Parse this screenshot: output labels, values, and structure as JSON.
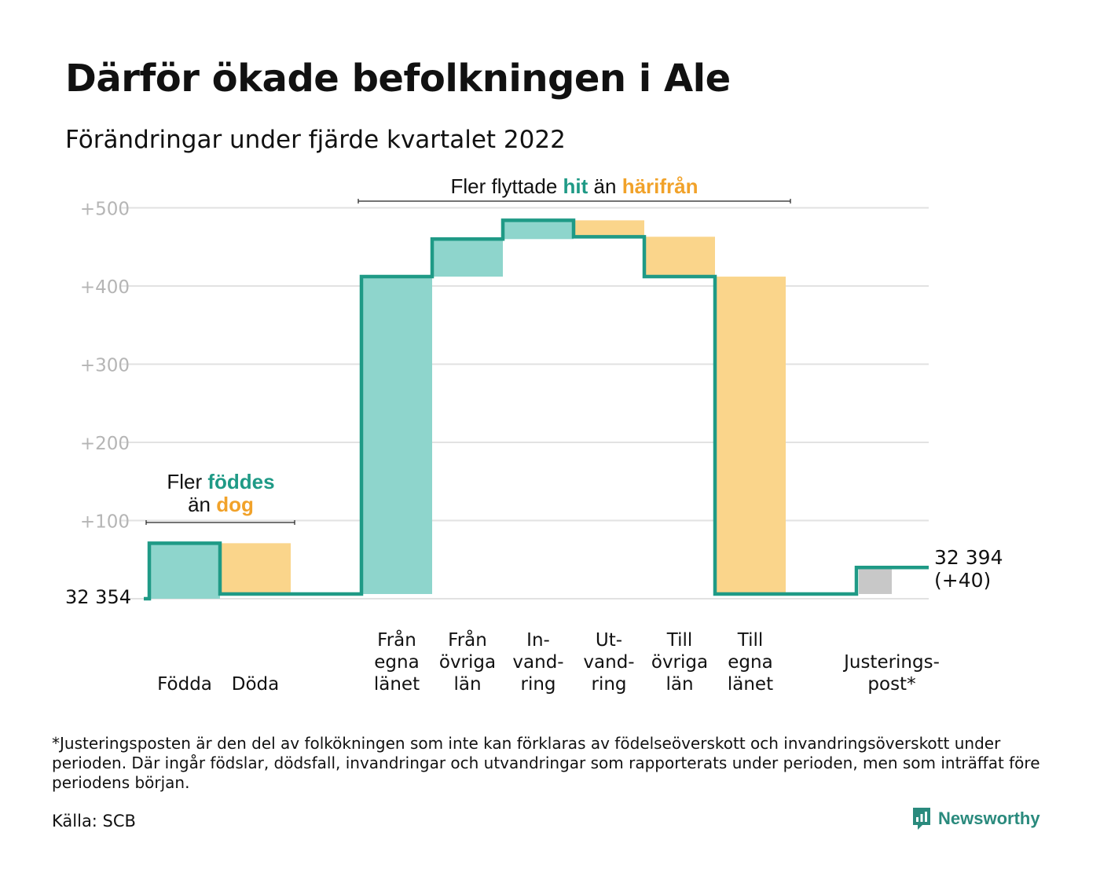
{
  "title": "Därför ökade befolkningen i Ale",
  "subtitle": "Förändringar under fjärde kvartalet 2022",
  "colors": {
    "in_bar": "#8ed5cc",
    "out_bar": "#fad58b",
    "adjust_bar": "#c8c8c8",
    "step_line": "#1f9a86",
    "teal_text": "#1f9a86",
    "orange_text": "#f1a22a",
    "grid": "#e2e2e2",
    "tick_text": "#b5b5b5"
  },
  "chart_data": {
    "type": "waterfall",
    "y_ticks": [
      "+100",
      "+200",
      "+300",
      "+400",
      "+500"
    ],
    "ylim": [
      0,
      500
    ],
    "grid": true,
    "start_label": "32 354",
    "end_label_line1": "32 394",
    "end_label_line2": "(+40)",
    "steps": [
      {
        "label_lines": [
          "Födda"
        ],
        "change": 71,
        "kind": "in"
      },
      {
        "label_lines": [
          "Döda"
        ],
        "change": -65,
        "kind": "out"
      },
      {
        "label_lines": [
          "Från",
          "egna",
          "länet"
        ],
        "change": 406,
        "kind": "in"
      },
      {
        "label_lines": [
          "Från",
          "övriga",
          "län"
        ],
        "change": 48,
        "kind": "in"
      },
      {
        "label_lines": [
          "In-",
          "vand-",
          "ring"
        ],
        "change": 24,
        "kind": "in"
      },
      {
        "label_lines": [
          "Ut-",
          "vand-",
          "ring"
        ],
        "change": -21,
        "kind": "out"
      },
      {
        "label_lines": [
          "Till",
          "övriga",
          "län"
        ],
        "change": -51,
        "kind": "out"
      },
      {
        "label_lines": [
          "Till",
          "egna",
          "länet"
        ],
        "change": -406,
        "kind": "out"
      },
      {
        "label_lines": [
          "Justerings-",
          "post*"
        ],
        "change": 34,
        "kind": "adjust"
      }
    ],
    "annotations": [
      {
        "parts": [
          {
            "text": "Fler flyttade ",
            "style": "plain"
          },
          {
            "text": "hit",
            "style": "teal"
          },
          {
            "text": " än ",
            "style": "plain"
          },
          {
            "text": "härifrån",
            "style": "orange"
          }
        ]
      },
      {
        "line1": [
          {
            "text": "Fler ",
            "style": "plain"
          },
          {
            "text": "föddes",
            "style": "teal"
          }
        ],
        "line2": [
          {
            "text": "än ",
            "style": "plain"
          },
          {
            "text": "dog",
            "style": "orange"
          }
        ]
      }
    ]
  },
  "footnote": "*Justeringsposten är den del av folkökningen som inte kan förklaras av födelseöverskott och invandringsöverskott under perioden. Där ingår födslar, dödsfall, invandringar och utvandringar som rapporterats under perioden, men som inträffat före periodens början.",
  "source": "Källa: SCB",
  "brand": {
    "name": "Newsworthy",
    "icon": "newsworthy-logo-icon"
  }
}
